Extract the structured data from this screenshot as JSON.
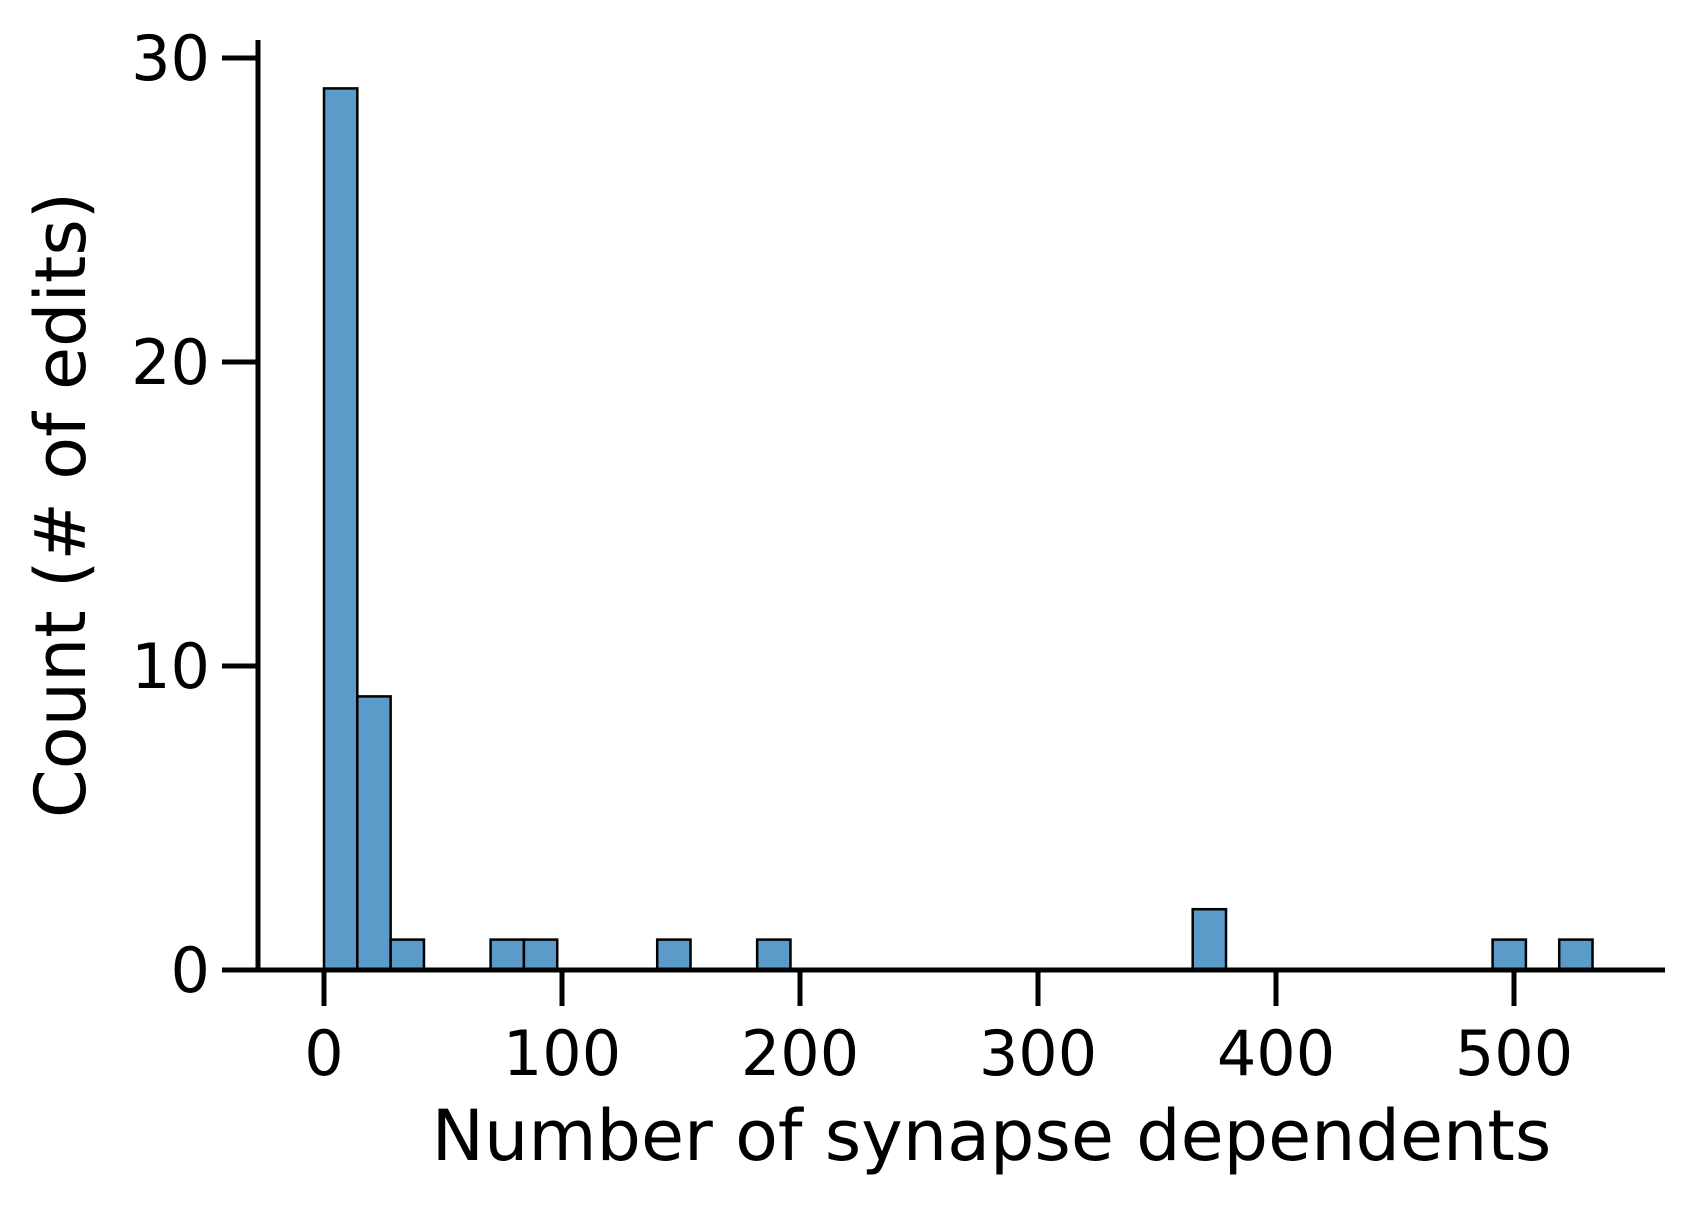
{
  "chart_data": {
    "type": "bar",
    "title": "",
    "xlabel": "Number of synapse dependents",
    "ylabel": "Count (# of edits)",
    "xlim": [
      -28,
      563
    ],
    "ylim": [
      0,
      30.5
    ],
    "xticks": [
      0,
      100,
      200,
      300,
      400,
      500
    ],
    "yticks": [
      0,
      10,
      20,
      30
    ],
    "bin_width": 14,
    "bins": [
      {
        "x0": 0,
        "x1": 14,
        "count": 29
      },
      {
        "x0": 14,
        "x1": 28,
        "count": 9
      },
      {
        "x0": 28,
        "x1": 42,
        "count": 1
      },
      {
        "x0": 70,
        "x1": 84,
        "count": 1
      },
      {
        "x0": 84,
        "x1": 98,
        "count": 1
      },
      {
        "x0": 140,
        "x1": 154,
        "count": 1
      },
      {
        "x0": 182,
        "x1": 196,
        "count": 1
      },
      {
        "x0": 365,
        "x1": 379,
        "count": 2
      },
      {
        "x0": 491,
        "x1": 505,
        "count": 1
      },
      {
        "x0": 519,
        "x1": 533,
        "count": 1
      }
    ],
    "bar_color": "#5a9bc9",
    "edge_color": "#000000",
    "grid": false,
    "legend": "none"
  }
}
